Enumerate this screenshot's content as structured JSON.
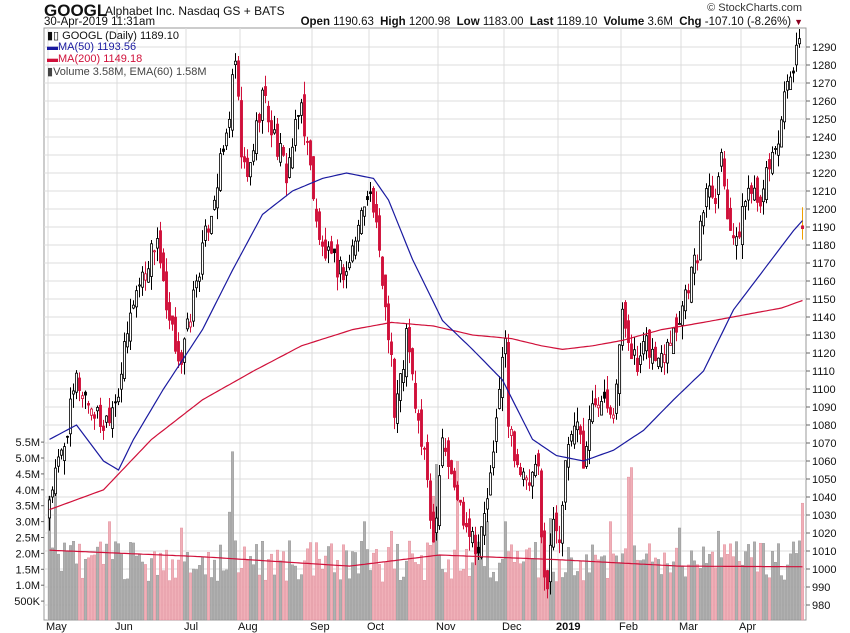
{
  "header": {
    "symbol": "GOOGL",
    "company": "Alphabet Inc.",
    "exchange": "Nasdaq GS + BATS",
    "datetime": "30-Apr-2019 11:31am",
    "copyright": "© StockCharts.com",
    "open_label": "Open",
    "open": "1190.63",
    "high_label": "High",
    "high": "1200.98",
    "low_label": "Low",
    "low": "1183.00",
    "last_label": "Last",
    "last": "1189.10",
    "volume_label": "Volume",
    "volume": "3.6M",
    "chg_label": "Chg",
    "chg": "-107.10 (-8.26%)"
  },
  "legend": {
    "price": "GOOGL (Daily) 1189.10",
    "ma50": "MA(50) 1193.56",
    "ma200": "MA(200) 1149.18",
    "volume": "Volume 3.58M, EMA(60) 1.58M"
  },
  "colors": {
    "up": "#000000",
    "down": "#d0103a",
    "ma50": "#1a1aa0",
    "ma200": "#d0103a",
    "vol_up": "#b0b0b0",
    "vol_down": "#f0b0b8",
    "grid": "#dcdcdc"
  },
  "chart_data": {
    "type": "candlestick",
    "title": "GOOGL (Daily)",
    "trading_days": 252,
    "ylim": [
      976,
      1298
    ],
    "y_ticks": [
      980,
      990,
      1000,
      1010,
      1020,
      1030,
      1040,
      1050,
      1060,
      1070,
      1080,
      1090,
      1100,
      1110,
      1120,
      1130,
      1140,
      1150,
      1160,
      1170,
      1180,
      1190,
      1200,
      1210,
      1220,
      1230,
      1240,
      1250,
      1260,
      1270,
      1280,
      1290
    ],
    "vol_ticks": [
      "500K",
      "1.0M",
      "1.5M",
      "2.0M",
      "2.5M",
      "3.0M",
      "3.5M",
      "4.0M",
      "4.5M",
      "5.0M",
      "5.5M"
    ],
    "vol_tick_values": [
      0.5,
      1,
      1.5,
      2,
      2.5,
      3,
      3.5,
      4,
      4.5,
      5,
      5.5
    ],
    "x_ticks": [
      {
        "label": "May",
        "day": 0
      },
      {
        "label": "Jun",
        "day": 23
      },
      {
        "label": "Jul",
        "day": 46
      },
      {
        "label": "Aug",
        "day": 64
      },
      {
        "label": "Sep",
        "day": 88
      },
      {
        "label": "Oct",
        "day": 107
      },
      {
        "label": "Nov",
        "day": 130
      },
      {
        "label": "Dec",
        "day": 152
      },
      {
        "label": "2019",
        "day": 170
      },
      {
        "label": "Feb",
        "day": 191
      },
      {
        "label": "Mar",
        "day": 211
      },
      {
        "label": "Apr",
        "day": 231
      }
    ],
    "close_keypoints": [
      [
        0,
        1040
      ],
      [
        5,
        1070
      ],
      [
        9,
        1105
      ],
      [
        14,
        1090
      ],
      [
        18,
        1080
      ],
      [
        23,
        1100
      ],
      [
        28,
        1150
      ],
      [
        36,
        1185
      ],
      [
        39,
        1140
      ],
      [
        44,
        1115
      ],
      [
        49,
        1160
      ],
      [
        54,
        1200
      ],
      [
        59,
        1240
      ],
      [
        62,
        1282
      ],
      [
        64,
        1230
      ],
      [
        66,
        1215
      ],
      [
        71,
        1265
      ],
      [
        74,
        1245
      ],
      [
        79,
        1220
      ],
      [
        84,
        1258
      ],
      [
        88,
        1210
      ],
      [
        90,
        1180
      ],
      [
        94,
        1170
      ],
      [
        99,
        1165
      ],
      [
        103,
        1190
      ],
      [
        106,
        1212
      ],
      [
        108,
        1200
      ],
      [
        111,
        1160
      ],
      [
        114,
        1120
      ],
      [
        115,
        1085
      ],
      [
        118,
        1115
      ],
      [
        119,
        1130
      ],
      [
        123,
        1080
      ],
      [
        126,
        1050
      ],
      [
        128,
        1015
      ],
      [
        131,
        1075
      ],
      [
        134,
        1050
      ],
      [
        138,
        1030
      ],
      [
        141,
        1020
      ],
      [
        143,
        1010
      ],
      [
        148,
        1060
      ],
      [
        150,
        1105
      ],
      [
        152,
        1125
      ],
      [
        153,
        1080
      ],
      [
        156,
        1060
      ],
      [
        159,
        1045
      ],
      [
        163,
        1055
      ],
      [
        164,
        1015
      ],
      [
        166,
        990
      ],
      [
        168,
        1030
      ],
      [
        170,
        1020
      ],
      [
        173,
        1070
      ],
      [
        176,
        1085
      ],
      [
        178,
        1060
      ],
      [
        181,
        1090
      ],
      [
        184,
        1100
      ],
      [
        188,
        1090
      ],
      [
        191,
        1140
      ],
      [
        193,
        1130
      ],
      [
        196,
        1110
      ],
      [
        199,
        1125
      ],
      [
        203,
        1115
      ],
      [
        206,
        1130
      ],
      [
        209,
        1135
      ],
      [
        213,
        1160
      ],
      [
        216,
        1175
      ],
      [
        218,
        1200
      ],
      [
        219,
        1215
      ],
      [
        222,
        1210
      ],
      [
        224,
        1230
      ],
      [
        226,
        1200
      ],
      [
        229,
        1178
      ],
      [
        231,
        1200
      ],
      [
        233,
        1210
      ],
      [
        234,
        1215
      ],
      [
        238,
        1205
      ],
      [
        239,
        1220
      ],
      [
        243,
        1240
      ],
      [
        245,
        1260
      ],
      [
        248,
        1275
      ],
      [
        249,
        1285
      ],
      [
        250,
        1290
      ],
      [
        251,
        1189.1
      ]
    ],
    "ma50": [
      [
        0,
        1072
      ],
      [
        9,
        1080
      ],
      [
        18,
        1060
      ],
      [
        23,
        1055
      ],
      [
        28,
        1072
      ],
      [
        38,
        1100
      ],
      [
        51,
        1133
      ],
      [
        61,
        1166
      ],
      [
        71,
        1197
      ],
      [
        81,
        1210
      ],
      [
        91,
        1217
      ],
      [
        99,
        1220
      ],
      [
        108,
        1217
      ],
      [
        113,
        1205
      ],
      [
        121,
        1172
      ],
      [
        131,
        1138
      ],
      [
        141,
        1122
      ],
      [
        151,
        1105
      ],
      [
        161,
        1072
      ],
      [
        169,
        1063
      ],
      [
        178,
        1060
      ],
      [
        188,
        1066
      ],
      [
        198,
        1077
      ],
      [
        208,
        1094
      ],
      [
        218,
        1110
      ],
      [
        228,
        1144
      ],
      [
        238,
        1166
      ],
      [
        248,
        1188
      ],
      [
        251,
        1193.56
      ]
    ],
    "ma200": [
      [
        0,
        1033
      ],
      [
        18,
        1044
      ],
      [
        34,
        1072
      ],
      [
        51,
        1094
      ],
      [
        68,
        1110
      ],
      [
        84,
        1124
      ],
      [
        101,
        1133
      ],
      [
        114,
        1137
      ],
      [
        128,
        1135
      ],
      [
        141,
        1130
      ],
      [
        154,
        1128
      ],
      [
        164,
        1124
      ],
      [
        171,
        1122
      ],
      [
        181,
        1124
      ],
      [
        191,
        1127
      ],
      [
        204,
        1133
      ],
      [
        218,
        1137
      ],
      [
        231,
        1141
      ],
      [
        244,
        1145
      ],
      [
        251,
        1149.18
      ]
    ],
    "volume_spikes": [
      [
        0,
        3.8
      ],
      [
        2,
        4.5
      ],
      [
        20,
        3.0
      ],
      [
        44,
        2.8
      ],
      [
        60,
        3.3
      ],
      [
        61,
        5.2
      ],
      [
        105,
        3.0
      ],
      [
        114,
        2.7
      ],
      [
        128,
        3.8
      ],
      [
        129,
        4.8
      ],
      [
        136,
        4.9
      ],
      [
        146,
        3.0
      ],
      [
        152,
        3.0
      ],
      [
        164,
        3.8
      ],
      [
        167,
        3.1
      ],
      [
        187,
        3.0
      ],
      [
        193,
        4.4
      ],
      [
        194,
        4.7
      ],
      [
        210,
        2.8
      ],
      [
        223,
        2.7
      ],
      [
        251,
        3.58
      ]
    ],
    "volume_ema": [
      [
        0,
        2.1
      ],
      [
        50,
        1.9
      ],
      [
        100,
        1.6
      ],
      [
        130,
        1.95
      ],
      [
        170,
        1.8
      ],
      [
        210,
        1.6
      ],
      [
        251,
        1.58
      ]
    ]
  }
}
